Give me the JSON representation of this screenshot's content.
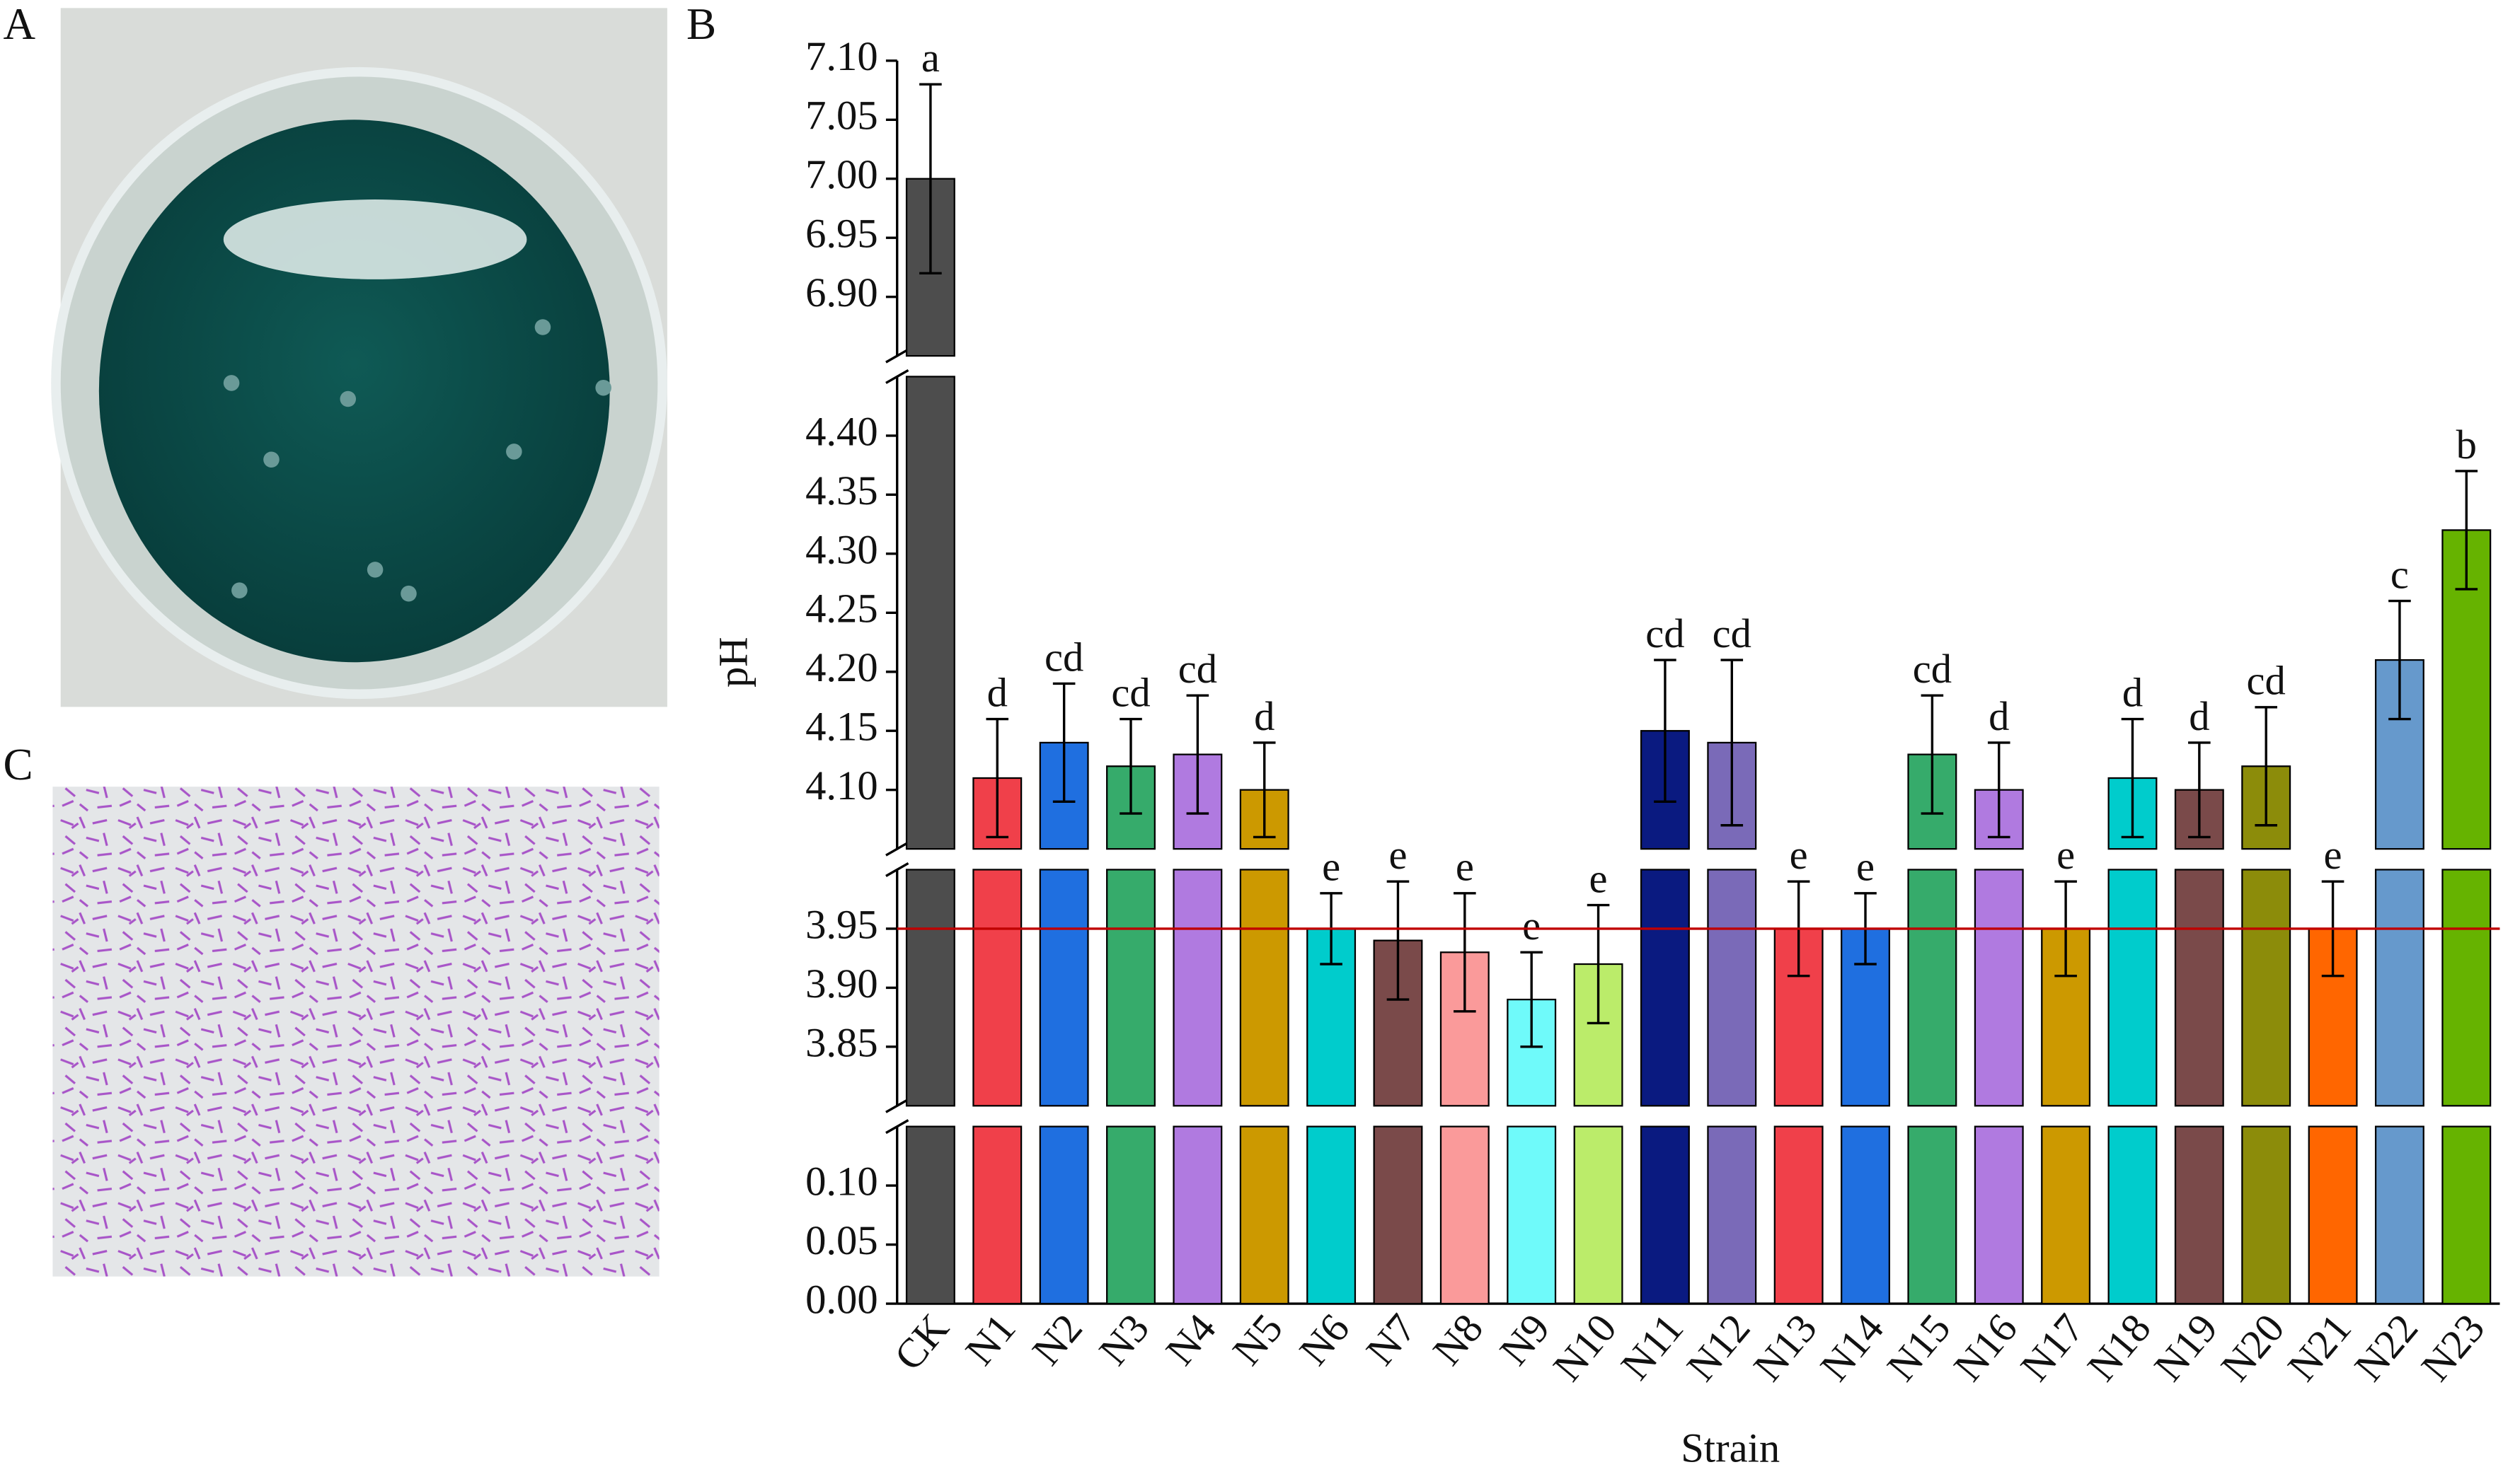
{
  "panels": {
    "a": "A",
    "b": "B",
    "c": "C"
  },
  "chart_data": {
    "type": "bar",
    "x_label": "Strain",
    "y_label": "pH",
    "categories": [
      "CK",
      "N1",
      "N2",
      "N3",
      "N4",
      "N5",
      "N6",
      "N7",
      "N8",
      "N9",
      "N10",
      "N11",
      "N12",
      "N13",
      "N14",
      "N15",
      "N16",
      "N17",
      "N18",
      "N19",
      "N20",
      "N21",
      "N22",
      "N23"
    ],
    "values": [
      7.0,
      4.11,
      4.14,
      4.12,
      4.13,
      4.1,
      3.95,
      3.94,
      3.93,
      3.89,
      3.92,
      4.15,
      4.14,
      3.95,
      3.95,
      4.13,
      4.1,
      3.95,
      4.11,
      4.1,
      4.12,
      3.95,
      4.21,
      4.32
    ],
    "errors": [
      0.08,
      0.05,
      0.05,
      0.04,
      0.05,
      0.04,
      0.03,
      0.05,
      0.05,
      0.04,
      0.05,
      0.06,
      0.07,
      0.04,
      0.03,
      0.05,
      0.04,
      0.04,
      0.05,
      0.04,
      0.05,
      0.04,
      0.05,
      0.05
    ],
    "annotations": [
      "a",
      "d",
      "cd",
      "cd",
      "cd",
      "d",
      "e",
      "e",
      "e",
      "e",
      "e",
      "cd",
      "cd",
      "e",
      "e",
      "cd",
      "d",
      "e",
      "d",
      "d",
      "cd",
      "e",
      "c",
      "b"
    ],
    "colors": [
      "#4d4d4d",
      "#f0404a",
      "#1f6fe0",
      "#36ab6b",
      "#b07ae0",
      "#cc9900",
      "#00cccc",
      "#7a4a4a",
      "#fa9a9a",
      "#6ffafa",
      "#bbec6a",
      "#0a1a80",
      "#7a6ab8",
      "#f0404a",
      "#1f6fe0",
      "#36ab6b",
      "#b07ae0",
      "#cc9900",
      "#00cccc",
      "#7a4a4a",
      "#8c8c0a",
      "#ff6600",
      "#6699cc",
      "#66b300"
    ],
    "reference_line": {
      "value": 3.95,
      "color": "#c00000"
    },
    "y_segments": [
      {
        "ylim": [
          0,
          0.15
        ],
        "yticks": [
          {
            "value": 0,
            "label": "0.00"
          },
          0.05,
          {
            "value": 0.1,
            "label": "0.10"
          }
        ]
      },
      {
        "ylim": [
          3.8,
          4.0
        ],
        "yticks": [
          3.85,
          {
            "value": 3.9,
            "label": "3.90"
          },
          3.95
        ]
      },
      {
        "ylim": [
          4.05,
          4.45
        ],
        "yticks": [
          {
            "value": 4.1,
            "label": "4.10"
          },
          4.15,
          {
            "value": 4.2,
            "label": "4.20"
          },
          4.25,
          {
            "value": 4.3,
            "label": "4.30"
          },
          4.35,
          {
            "value": 4.4,
            "label": "4.40"
          }
        ]
      },
      {
        "ylim": [
          6.85,
          7.1
        ],
        "yticks": [
          {
            "value": 6.9,
            "label": "6.90"
          },
          6.95,
          {
            "value": 7,
            "label": "7.00"
          },
          7.05,
          {
            "value": 7.1,
            "label": "7.10"
          }
        ]
      }
    ]
  }
}
